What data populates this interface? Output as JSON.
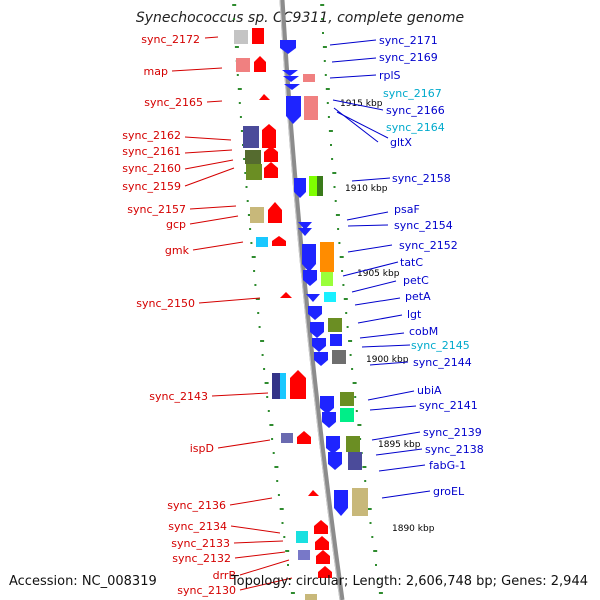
{
  "title": "Synechococcus sp. CC9311, complete genome",
  "footer": {
    "accession": "Accession: NC_008319",
    "summary": "Topology: circular; Length: 2,606,748 bp; Genes: 2,944"
  },
  "colors": {
    "left_label": "#d40000",
    "right_label": "#0000cc",
    "right_label_light": "#00aacc",
    "backbone": "#8c8c8c",
    "tick": "#2e8b2e"
  },
  "scale_labels": [
    "1915 kbp",
    "1910 kbp",
    "1905 kbp",
    "1900 kbp",
    "1895 kbp",
    "1890 kbp"
  ],
  "left_genes": [
    "sync_2172",
    "map",
    "sync_2165",
    "sync_2162",
    "sync_2161",
    "sync_2160",
    "sync_2159",
    "sync_2157",
    "gcp",
    "gmk",
    "sync_2150",
    "sync_2143",
    "ispD",
    "sync_2136",
    "sync_2134",
    "sync_2133",
    "sync_2132",
    "drrB",
    "sync_2130"
  ],
  "right_genes": [
    {
      "name": "sync_2171",
      "tone": "dark"
    },
    {
      "name": "sync_2169",
      "tone": "dark"
    },
    {
      "name": "rplS",
      "tone": "dark"
    },
    {
      "name": "sync_2167",
      "tone": "light"
    },
    {
      "name": "sync_2166",
      "tone": "dark"
    },
    {
      "name": "sync_2164",
      "tone": "light"
    },
    {
      "name": "gltX",
      "tone": "dark"
    },
    {
      "name": "sync_2158",
      "tone": "dark"
    },
    {
      "name": "psaF",
      "tone": "dark"
    },
    {
      "name": "sync_2154",
      "tone": "dark"
    },
    {
      "name": "sync_2152",
      "tone": "dark"
    },
    {
      "name": "tatC",
      "tone": "dark"
    },
    {
      "name": "petC",
      "tone": "dark"
    },
    {
      "name": "petA",
      "tone": "dark"
    },
    {
      "name": "lgt",
      "tone": "dark"
    },
    {
      "name": "cobM",
      "tone": "dark"
    },
    {
      "name": "sync_2145",
      "tone": "light"
    },
    {
      "name": "sync_2144",
      "tone": "dark"
    },
    {
      "name": "ubiA",
      "tone": "dark"
    },
    {
      "name": "sync_2141",
      "tone": "dark"
    },
    {
      "name": "sync_2139",
      "tone": "dark"
    },
    {
      "name": "sync_2138",
      "tone": "dark"
    },
    {
      "name": "fabG-1",
      "tone": "dark"
    },
    {
      "name": "groEL",
      "tone": "dark"
    }
  ]
}
